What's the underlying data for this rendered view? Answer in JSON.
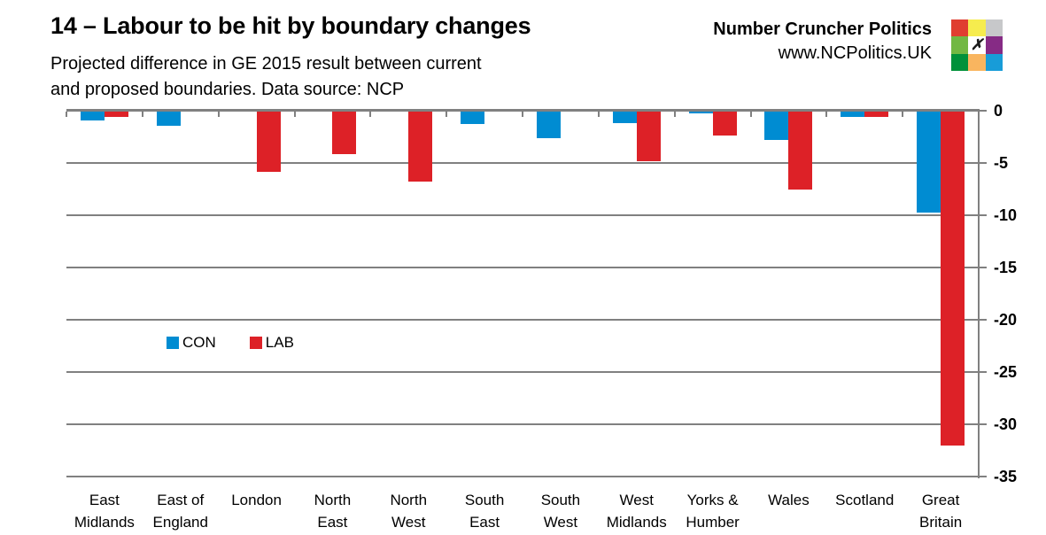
{
  "brand": {
    "name": "Number Cruncher Politics",
    "url": "www.NCPolitics.UK",
    "logo": {
      "cells": [
        "#E03E30",
        "#F6EC4E",
        "#C7C8CA",
        "#72B843",
        "#FFFFFF",
        "#862B85",
        "#00913A",
        "#F9B55F",
        "#189CD8"
      ],
      "x_glyph": "✗",
      "x_cell_index": 4
    }
  },
  "chart_data": {
    "type": "bar",
    "title": "14 – Labour to be hit by boundary changes",
    "subtitle_lines": [
      "Projected difference in GE 2015 result between current",
      "and proposed boundaries. Data source: NCP"
    ],
    "categories": [
      "East Midlands",
      "East of England",
      "London",
      "North East",
      "North West",
      "South East",
      "South West",
      "West Midlands",
      "Yorks & Humber",
      "Wales",
      "Scotland",
      "Great Britain"
    ],
    "category_lines": [
      [
        "East",
        "Midlands"
      ],
      [
        "East of",
        "England"
      ],
      [
        "London"
      ],
      [
        "North",
        "East"
      ],
      [
        "North",
        "West"
      ],
      [
        "South",
        "East"
      ],
      [
        "South",
        "West"
      ],
      [
        "West",
        "Midlands"
      ],
      [
        "Yorks &",
        "Humber"
      ],
      [
        "Wales"
      ],
      [
        "Scotland"
      ],
      [
        "Great",
        "Britain"
      ]
    ],
    "series": [
      {
        "name": "CON",
        "color": "#008CD2",
        "values": [
          -1.0,
          -1.5,
          0,
          0,
          0,
          -1.3,
          -2.7,
          -1.2,
          -0.3,
          -2.8,
          -0.6,
          -9.8
        ]
      },
      {
        "name": "LAB",
        "color": "#DD2127",
        "values": [
          -0.6,
          0,
          -5.9,
          -4.2,
          -6.8,
          0,
          0,
          -4.9,
          -2.4,
          -7.6,
          -0.6,
          -32.0
        ]
      }
    ],
    "ylim": [
      -35,
      0
    ],
    "yticks": [
      0,
      -5,
      -10,
      -15,
      -20,
      -25,
      -30,
      -35
    ],
    "ytick_labels": [
      "0",
      "-5",
      "-10",
      "-15",
      "-20",
      "-25",
      "-30",
      "-35"
    ],
    "xlabel": "",
    "ylabel": "",
    "grid": true,
    "legend_position": "inside-left",
    "grid_color": "#808080"
  }
}
